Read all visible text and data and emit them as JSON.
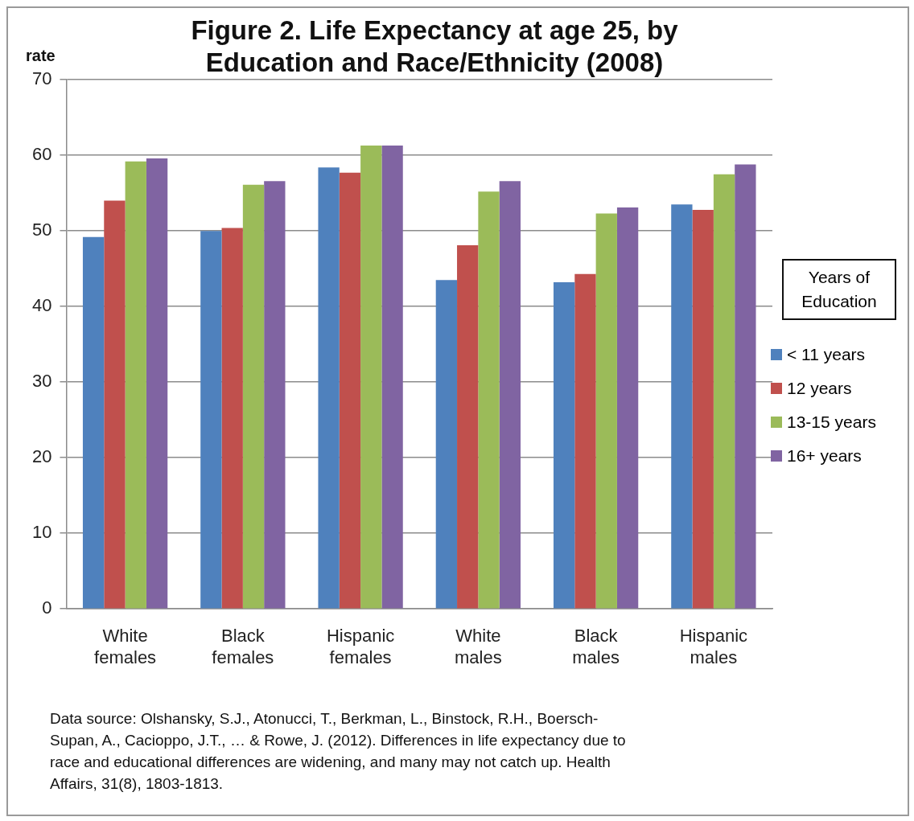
{
  "chart_data": {
    "type": "bar",
    "title": "Figure 2. Life Expectancy at age 25, by Education and Race/Ethnicity (2008)",
    "ylabel": "rate",
    "legend_title": "Years of Education",
    "categories": [
      "White females",
      "Black females",
      "Hispanic females",
      "White males",
      "Black males",
      "Hispanic males"
    ],
    "series": [
      {
        "name": "< 11 years",
        "color": "#4f81bd",
        "values": [
          49.2,
          50.0,
          58.4,
          43.5,
          43.2,
          53.5
        ]
      },
      {
        "name": "12 years",
        "color": "#c0504d",
        "values": [
          54.0,
          50.4,
          57.7,
          48.1,
          44.3,
          52.8
        ]
      },
      {
        "name": "13-15 years",
        "color": "#9bbb59",
        "values": [
          59.2,
          56.1,
          61.3,
          55.2,
          52.3,
          57.5
        ]
      },
      {
        "name": "16+ years",
        "color": "#8064a2",
        "values": [
          59.6,
          56.6,
          61.3,
          56.6,
          53.1,
          58.8
        ]
      }
    ],
    "ylim": [
      0,
      70
    ],
    "yticks": [
      0,
      10,
      20,
      30,
      40,
      50,
      60,
      70
    ],
    "grid": "y",
    "legend": "right",
    "annotations": [
      "Data source:  Olshansky, S.J., Atonucci, T., Berkman, L., Binstock, R.H., Boersch-Supan, A., Cacioppo, J.T., … & Rowe, J. (2012). Differences in life expectancy due to race and educational differences are widening, and many may not catch up. Health Affairs, 31(8), 1803-1813."
    ]
  }
}
